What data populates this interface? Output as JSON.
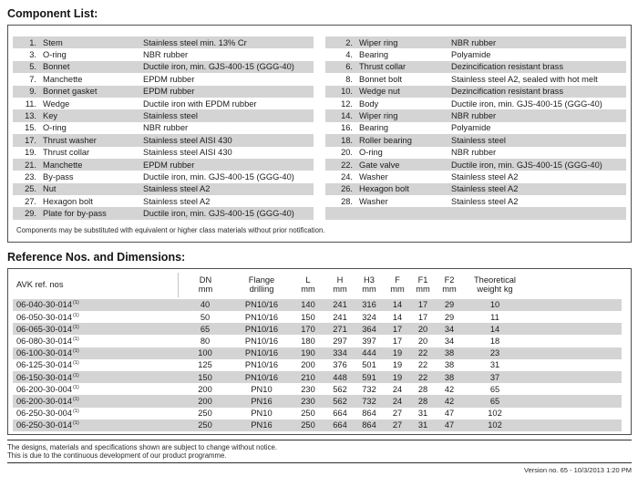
{
  "colors": {
    "row_shade": "#d4d4d4",
    "border": "#4f4f4f"
  },
  "component_list": {
    "heading": "Component List:",
    "note": "Components may be substituted with equivalent or higher class materials without prior notification.",
    "left": [
      {
        "no": "1.",
        "name": "Stem",
        "material": "Stainless steel min. 13% Cr"
      },
      {
        "no": "3.",
        "name": "O-ring",
        "material": "NBR rubber"
      },
      {
        "no": "5.",
        "name": "Bonnet",
        "material": "Ductile iron, min. GJS-400-15 (GGG-40)"
      },
      {
        "no": "7.",
        "name": "Manchette",
        "material": "EPDM rubber"
      },
      {
        "no": "9.",
        "name": "Bonnet gasket",
        "material": "EPDM rubber"
      },
      {
        "no": "11.",
        "name": "Wedge",
        "material": "Ductile iron with EPDM rubber"
      },
      {
        "no": "13.",
        "name": "Key",
        "material": "Stainless steel"
      },
      {
        "no": "15.",
        "name": "O-ring",
        "material": "NBR rubber"
      },
      {
        "no": "17.",
        "name": "Thrust washer",
        "material": "Stainless steel AISI 430"
      },
      {
        "no": "19.",
        "name": "Thrust collar",
        "material": "Stainless steel AISI 430"
      },
      {
        "no": "21.",
        "name": "Manchette",
        "material": "EPDM rubber"
      },
      {
        "no": "23.",
        "name": "By-pass",
        "material": "Ductile iron, min. GJS-400-15 (GGG-40)"
      },
      {
        "no": "25.",
        "name": "Nut",
        "material": "Stainless steel A2"
      },
      {
        "no": "27.",
        "name": "Hexagon bolt",
        "material": "Stainless steel A2"
      },
      {
        "no": "29.",
        "name": "Plate for by-pass",
        "material": "Ductile iron, min. GJS-400-15 (GGG-40)"
      }
    ],
    "right": [
      {
        "no": "2.",
        "name": "Wiper ring",
        "material": "NBR rubber"
      },
      {
        "no": "4.",
        "name": "Bearing",
        "material": "Polyamide"
      },
      {
        "no": "6.",
        "name": "Thrust collar",
        "material": "Dezincification resistant brass"
      },
      {
        "no": "8.",
        "name": "Bonnet bolt",
        "material": "Stainless steel A2, sealed with hot melt"
      },
      {
        "no": "10.",
        "name": "Wedge nut",
        "material": "Dezincification resistant brass"
      },
      {
        "no": "12.",
        "name": "Body",
        "material": "Ductile iron, min. GJS-400-15 (GGG-40)"
      },
      {
        "no": "14.",
        "name": "Wiper ring",
        "material": "NBR rubber"
      },
      {
        "no": "16.",
        "name": "Bearing",
        "material": "Polyamide"
      },
      {
        "no": "18.",
        "name": "Roller bearing",
        "material": "Stainless steel"
      },
      {
        "no": "20.",
        "name": "O-ring",
        "material": "NBR rubber"
      },
      {
        "no": "22.",
        "name": "Gate valve",
        "material": "Ductile iron, min. GJS-400-15 (GGG-40)"
      },
      {
        "no": "24.",
        "name": "Washer",
        "material": "Stainless steel A2"
      },
      {
        "no": "26.",
        "name": "Hexagon bolt",
        "material": "Stainless steel A2"
      },
      {
        "no": "28.",
        "name": "Washer",
        "material": "Stainless steel A2"
      },
      {
        "no": "",
        "name": "",
        "material": ""
      }
    ]
  },
  "dimensions": {
    "heading": "Reference Nos. and Dimensions:",
    "ref_header": "AVK ref. nos",
    "note_mark": "(1)",
    "columns": [
      {
        "label": "DN",
        "unit": "mm"
      },
      {
        "label": "Flange",
        "unit": "drilling"
      },
      {
        "label": "L",
        "unit": "mm"
      },
      {
        "label": "H",
        "unit": "mm"
      },
      {
        "label": "H3",
        "unit": "mm"
      },
      {
        "label": "F",
        "unit": "mm"
      },
      {
        "label": "F1",
        "unit": "mm"
      },
      {
        "label": "F2",
        "unit": "mm"
      },
      {
        "label": "Theoretical",
        "unit": "weight kg"
      }
    ],
    "rows": [
      {
        "ref": "06-040-30-014",
        "values": [
          "40",
          "PN10/16",
          "140",
          "241",
          "316",
          "14",
          "17",
          "29",
          "10"
        ]
      },
      {
        "ref": "06-050-30-014",
        "values": [
          "50",
          "PN10/16",
          "150",
          "241",
          "324",
          "14",
          "17",
          "29",
          "11"
        ]
      },
      {
        "ref": "06-065-30-014",
        "values": [
          "65",
          "PN10/16",
          "170",
          "271",
          "364",
          "17",
          "20",
          "34",
          "14"
        ]
      },
      {
        "ref": "06-080-30-014",
        "values": [
          "80",
          "PN10/16",
          "180",
          "297",
          "397",
          "17",
          "20",
          "34",
          "18"
        ]
      },
      {
        "ref": "06-100-30-014",
        "values": [
          "100",
          "PN10/16",
          "190",
          "334",
          "444",
          "19",
          "22",
          "38",
          "23"
        ]
      },
      {
        "ref": "06-125-30-014",
        "values": [
          "125",
          "PN10/16",
          "200",
          "376",
          "501",
          "19",
          "22",
          "38",
          "31"
        ]
      },
      {
        "ref": "06-150-30-014",
        "values": [
          "150",
          "PN10/16",
          "210",
          "448",
          "591",
          "19",
          "22",
          "38",
          "37"
        ]
      },
      {
        "ref": "06-200-30-004",
        "values": [
          "200",
          "PN10",
          "230",
          "562",
          "732",
          "24",
          "28",
          "42",
          "65"
        ]
      },
      {
        "ref": "06-200-30-014",
        "values": [
          "200",
          "PN16",
          "230",
          "562",
          "732",
          "24",
          "28",
          "42",
          "65"
        ]
      },
      {
        "ref": "06-250-30-004",
        "values": [
          "250",
          "PN10",
          "250",
          "664",
          "864",
          "27",
          "31",
          "47",
          "102"
        ]
      },
      {
        "ref": "06-250-30-014",
        "values": [
          "250",
          "PN16",
          "250",
          "664",
          "864",
          "27",
          "31",
          "47",
          "102"
        ]
      }
    ]
  },
  "footer": {
    "line1": "The designs, materials and specifications shown are subject to change without notice.",
    "line2": "This is due to the continuous development of our product programme.",
    "version": "Version no. 65 - 10/3/2013 1:20 PM"
  }
}
